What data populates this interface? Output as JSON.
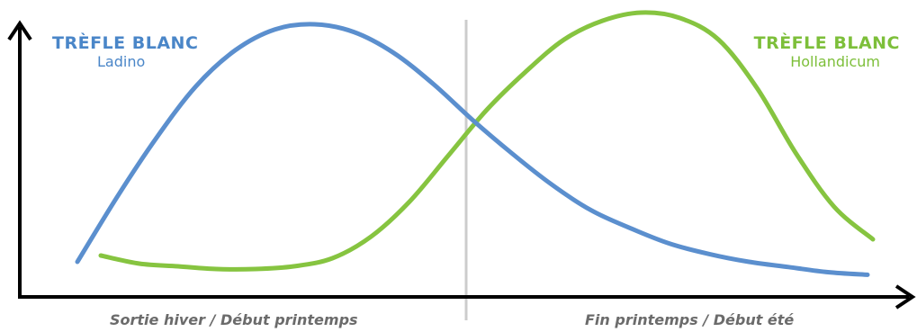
{
  "chart_data": {
    "type": "line",
    "x": [
      0,
      1,
      2,
      3,
      4,
      5,
      6,
      7,
      8,
      9,
      10,
      11,
      12,
      13,
      14,
      15,
      16,
      17,
      18,
      19,
      20
    ],
    "categories": [
      "Sortie hiver / Début printemps",
      "Fin printemps / Début été"
    ],
    "ylim": [
      0,
      1
    ],
    "grid": false,
    "series": [
      {
        "name": "TRÈFLE BLANC Ladino",
        "color": "#5b8fce",
        "values": [
          0.08,
          0.33,
          0.56,
          0.76,
          0.9,
          0.98,
          1.0,
          0.97,
          0.89,
          0.77,
          0.63,
          0.5,
          0.38,
          0.28,
          0.21,
          0.15,
          0.11,
          0.08,
          0.06,
          0.04,
          0.03
        ]
      },
      {
        "name": "TRÈFLE BLANC Hollandicum",
        "color": "#86c440",
        "values": [
          0.1,
          0.07,
          0.06,
          0.05,
          0.05,
          0.06,
          0.09,
          0.17,
          0.3,
          0.47,
          0.64,
          0.78,
          0.9,
          0.97,
          1.0,
          0.98,
          0.9,
          0.72,
          0.48,
          0.28,
          0.16
        ]
      }
    ]
  },
  "legend": {
    "ladino": {
      "title": "TRÈFLE BLANC",
      "subtitle": "Ladino",
      "color": "#4a86c8"
    },
    "hollandicum": {
      "title": "TRÈFLE BLANC",
      "subtitle": "Hollandicum",
      "color": "#7dbf3a"
    }
  },
  "periods": {
    "early": "Sortie hiver / Début printemps",
    "late": "Fin printemps / Début été"
  },
  "colors": {
    "axis": "#000000",
    "divider": "#cccccc",
    "period_text": "#6b6b6b"
  }
}
